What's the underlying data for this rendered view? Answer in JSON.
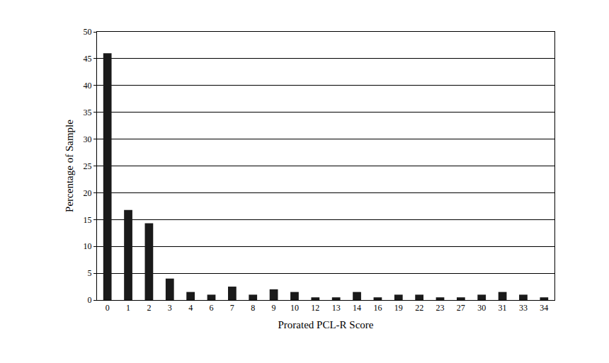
{
  "chart_data": {
    "type": "bar",
    "x_label": "Prorated PCL-R Score",
    "y_label": "Percentage of Sample",
    "categories": [
      "0",
      "1",
      "2",
      "3",
      "4",
      "6",
      "7",
      "8",
      "9",
      "10",
      "12",
      "13",
      "14",
      "16",
      "19",
      "22",
      "23",
      "27",
      "30",
      "31",
      "33",
      "34"
    ],
    "values": [
      46,
      16.8,
      14.3,
      4,
      1.5,
      1,
      2.5,
      1,
      2,
      1.5,
      0.5,
      0.5,
      1.5,
      0.5,
      1,
      1,
      0.5,
      0.5,
      1,
      1.5,
      1,
      0.5
    ],
    "color": "#1a1a1a",
    "ylim": [
      0,
      50
    ],
    "yticks": [
      0,
      5,
      10,
      15,
      20,
      25,
      30,
      35,
      40,
      45,
      50
    ],
    "grid": true
  }
}
